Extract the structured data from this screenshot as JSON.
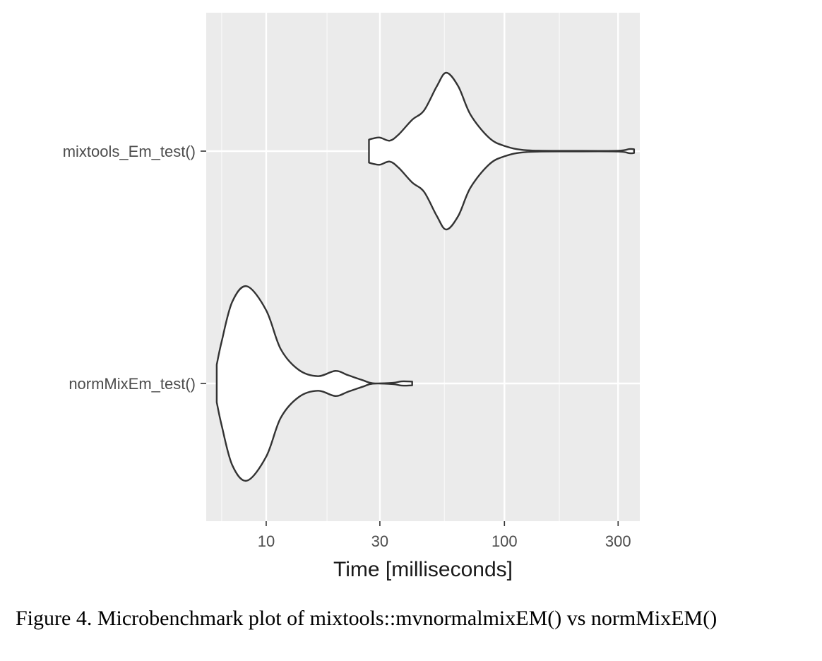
{
  "caption": "Figure 4. Microbenchmark plot of mixtools::mvnormalmixEM() vs normMixEM()",
  "chart_data": {
    "type": "violin",
    "orientation": "horizontal",
    "x_scale": "log10",
    "xlabel": "Time [milliseconds]",
    "ylabel": "",
    "xlim": [
      5.6,
      370
    ],
    "x_ticks": [
      10,
      30,
      100,
      300
    ],
    "x_tick_labels": [
      "10",
      "30",
      "100",
      "300"
    ],
    "x_minor_ticks": [
      6.5,
      18,
      56,
      170
    ],
    "grid": true,
    "categories": [
      "mixtools_Em_test()",
      "normMixEm_test()"
    ],
    "series": [
      {
        "category": "mixtools_Em_test()",
        "profile": [
          [
            27,
            0.11
          ],
          [
            28,
            0.12
          ],
          [
            30,
            0.13
          ],
          [
            33,
            0.1
          ],
          [
            36,
            0.16
          ],
          [
            41,
            0.3
          ],
          [
            46,
            0.39
          ],
          [
            52,
            0.62
          ],
          [
            57,
            0.75
          ],
          [
            64,
            0.62
          ],
          [
            72,
            0.35
          ],
          [
            86,
            0.13
          ],
          [
            100,
            0.05
          ],
          [
            125,
            0.008
          ],
          [
            200,
            0.003
          ],
          [
            300,
            0.004
          ],
          [
            335,
            0.02
          ],
          [
            350,
            0.018
          ]
        ]
      },
      {
        "category": "normMixEm_test()",
        "profile": [
          [
            6.2,
            0.18
          ],
          [
            6.5,
            0.4
          ],
          [
            7.2,
            0.78
          ],
          [
            8.3,
            0.93
          ],
          [
            10,
            0.7
          ],
          [
            11.5,
            0.33
          ],
          [
            13.7,
            0.13
          ],
          [
            16.5,
            0.07
          ],
          [
            19.5,
            0.12
          ],
          [
            22,
            0.08
          ],
          [
            25.5,
            0.03
          ],
          [
            28,
            0.002
          ],
          [
            34,
            0.006
          ],
          [
            37,
            0.02
          ],
          [
            41,
            0.018
          ]
        ]
      }
    ]
  }
}
